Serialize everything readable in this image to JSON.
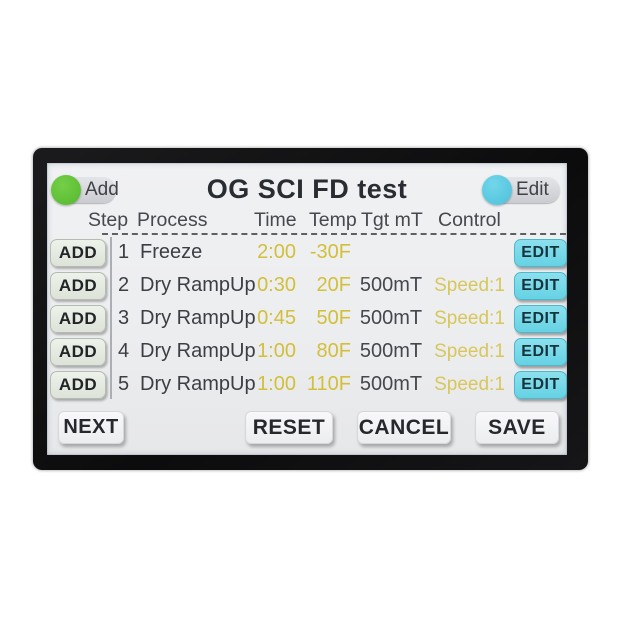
{
  "title": "OG SCI FD test",
  "toggles": {
    "add_label": "Add",
    "edit_label": "Edit",
    "add_indicator_color": "#54b82c",
    "edit_indicator_color": "#4cc0da"
  },
  "columns": [
    "Step",
    "Process",
    "Time",
    "Temp",
    "Tgt mT",
    "Control"
  ],
  "rows": [
    {
      "add": "ADD",
      "step": "1",
      "process": "Freeze",
      "time": "2:00",
      "temp": "-30F",
      "tgt": "",
      "control": "",
      "edit": "EDIT"
    },
    {
      "add": "ADD",
      "step": "2",
      "process": "Dry RampUp",
      "time": "0:30",
      "temp": "20F",
      "tgt": "500mT",
      "control": "Speed:1",
      "edit": "EDIT"
    },
    {
      "add": "ADD",
      "step": "3",
      "process": "Dry RampUp",
      "time": "0:45",
      "temp": "50F",
      "tgt": "500mT",
      "control": "Speed:1",
      "edit": "EDIT"
    },
    {
      "add": "ADD",
      "step": "4",
      "process": "Dry RampUp",
      "time": "1:00",
      "temp": "80F",
      "tgt": "500mT",
      "control": "Speed:1",
      "edit": "EDIT"
    },
    {
      "add": "ADD",
      "step": "5",
      "process": "Dry RampUp",
      "time": "1:00",
      "temp": "110F",
      "tgt": "500mT",
      "control": "Speed:1",
      "edit": "EDIT"
    }
  ],
  "footer": {
    "next": "NEXT",
    "reset": "RESET",
    "cancel": "CANCEL",
    "save": "SAVE"
  },
  "colors": {
    "value_yellow": "#d2bf3a",
    "speed_yellow": "#d8c75c",
    "edit_button_cyan": "#66d2e4",
    "add_button_green_tint": "#dde3d9",
    "screen_background": "#ecedef",
    "bezel_black": "#0c0c0d"
  }
}
